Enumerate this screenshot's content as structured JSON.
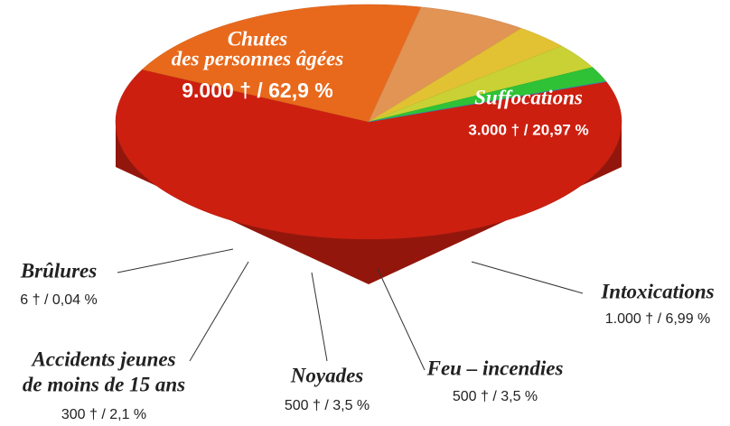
{
  "chart_data": {
    "type": "pie",
    "categories": [
      [
        "Chutes",
        "des personnes âgées"
      ],
      [
        "Suffocations"
      ],
      [
        "Intoxications"
      ],
      [
        "Feu – incendies"
      ],
      [
        "Noyades"
      ],
      [
        "Accidents jeunes",
        "de moins de 15 ans"
      ],
      [
        "Brûlures"
      ]
    ],
    "values": [
      9000,
      3000,
      1000,
      500,
      500,
      300,
      6
    ],
    "value_labels": [
      "9.000 † / 62,9 %",
      "3.000 † / 20,97 %",
      "1.000 † / 6,99 %",
      "500 † / 3,5 %",
      "500 † / 3,5 %",
      "300 † / 2,1 %",
      "6 † / 0,04 %"
    ],
    "colors": [
      "#cc1f10",
      "#e8691c",
      "#e29455",
      "#e2c233",
      "#c9d134",
      "#2fc237",
      "#3a8fd0"
    ]
  }
}
